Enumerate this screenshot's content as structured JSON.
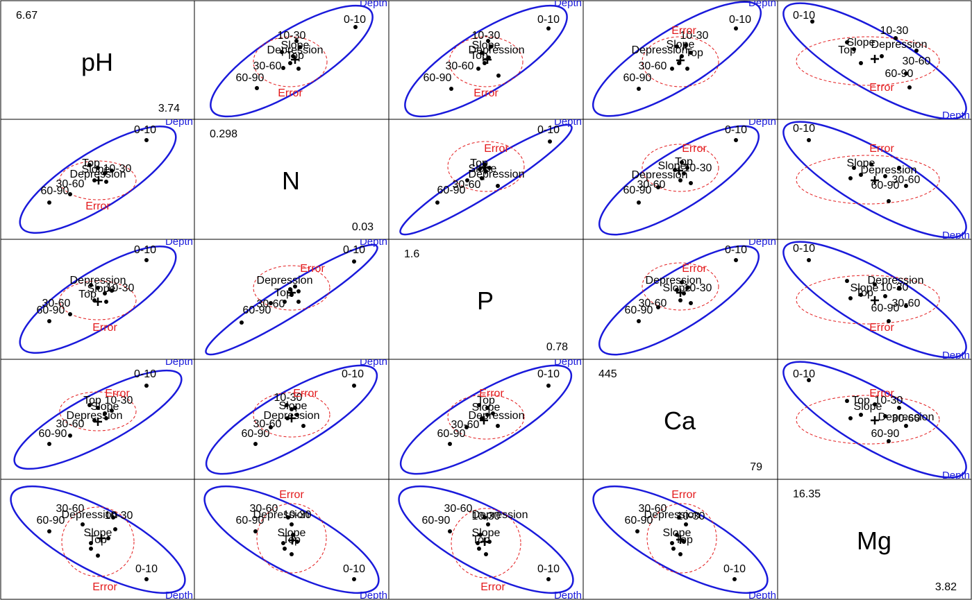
{
  "chart_data": {
    "type": "scatter",
    "variables": [
      {
        "name": "pH",
        "max": "6.67",
        "min": "3.74"
      },
      {
        "name": "N",
        "max": "0.298",
        "min": "0.03"
      },
      {
        "name": "P",
        "max": "1.6",
        "min": "0.78"
      },
      {
        "name": "Ca",
        "max": "445",
        "min": "79"
      },
      {
        "name": "Mg",
        "max": "16.35",
        "min": "3.82"
      }
    ],
    "effect_labels": {
      "hypothesis": "Depth",
      "error": "Error"
    },
    "colors": {
      "hypothesis": "#1a1adb",
      "error": "#e31a1c",
      "points": "#000000",
      "frame": "#000000"
    },
    "grid": false,
    "panels": [
      {
        "row": 0,
        "col": 1,
        "labels": [
          {
            "text": "10-30"
          },
          {
            "text": "Slope"
          },
          {
            "text": "Depression"
          },
          {
            "text": "Top"
          },
          {
            "text": "30-60"
          },
          {
            "text": "60-90"
          },
          {
            "text": "0-10"
          }
        ]
      },
      {
        "row": 0,
        "col": 2,
        "labels": [
          {
            "text": "10-30"
          },
          {
            "text": "Slope"
          },
          {
            "text": "Depression"
          },
          {
            "text": "Top"
          },
          {
            "text": "30-60"
          },
          {
            "text": "60-90"
          },
          {
            "text": "0-10"
          }
        ]
      },
      {
        "row": 0,
        "col": 3,
        "labels": [
          {
            "text": "10-30"
          },
          {
            "text": "Slope"
          },
          {
            "text": "Depression"
          },
          {
            "text": "Top"
          },
          {
            "text": "30-60"
          },
          {
            "text": "60-90"
          },
          {
            "text": "0-10"
          }
        ]
      },
      {
        "row": 0,
        "col": 4,
        "labels": [
          {
            "text": "0-10"
          },
          {
            "text": "10-30"
          },
          {
            "text": "Slope"
          },
          {
            "text": "Top"
          },
          {
            "text": "Depression"
          },
          {
            "text": "30-60"
          },
          {
            "text": "60-90"
          }
        ]
      },
      {
        "row": 1,
        "col": 0,
        "labels": [
          {
            "text": "0-10"
          },
          {
            "text": "Top"
          },
          {
            "text": "Slope"
          },
          {
            "text": "10-30"
          },
          {
            "text": "Depression"
          },
          {
            "text": "30-60"
          },
          {
            "text": "60-90"
          }
        ]
      },
      {
        "row": 1,
        "col": 2,
        "labels": [
          {
            "text": "0-10"
          },
          {
            "text": "Top"
          },
          {
            "text": "Slope"
          },
          {
            "text": "Depression"
          },
          {
            "text": "30-60"
          },
          {
            "text": "60-90"
          }
        ]
      },
      {
        "row": 1,
        "col": 3,
        "labels": [
          {
            "text": "0-10"
          },
          {
            "text": "Top"
          },
          {
            "text": "Slope"
          },
          {
            "text": "10-30"
          },
          {
            "text": "Depression"
          },
          {
            "text": "30-60"
          },
          {
            "text": "60-90"
          }
        ]
      },
      {
        "row": 1,
        "col": 4,
        "labels": [
          {
            "text": "0-10"
          },
          {
            "text": "Slope"
          },
          {
            "text": "Depression"
          },
          {
            "text": "30-60"
          },
          {
            "text": "60-90"
          }
        ]
      },
      {
        "row": 2,
        "col": 0,
        "labels": [
          {
            "text": "0-10"
          },
          {
            "text": "Depression"
          },
          {
            "text": "Slope"
          },
          {
            "text": "10-30"
          },
          {
            "text": "Top"
          },
          {
            "text": "30-60"
          },
          {
            "text": "60-90"
          }
        ]
      },
      {
        "row": 2,
        "col": 1,
        "labels": [
          {
            "text": "0-10"
          },
          {
            "text": "Depression"
          },
          {
            "text": "Top"
          },
          {
            "text": "30-60"
          },
          {
            "text": "60-90"
          }
        ]
      },
      {
        "row": 2,
        "col": 3,
        "labels": [
          {
            "text": "0-10"
          },
          {
            "text": "Depression"
          },
          {
            "text": "Slope"
          },
          {
            "text": "10-30"
          },
          {
            "text": "30-60"
          },
          {
            "text": "60-90"
          }
        ]
      },
      {
        "row": 2,
        "col": 4,
        "labels": [
          {
            "text": "0-10"
          },
          {
            "text": "Depression"
          },
          {
            "text": "Slope"
          },
          {
            "text": "Top"
          },
          {
            "text": "10-30"
          },
          {
            "text": "30-60"
          },
          {
            "text": "60-90"
          }
        ]
      },
      {
        "row": 3,
        "col": 0,
        "labels": [
          {
            "text": "0-10"
          },
          {
            "text": "Top"
          },
          {
            "text": "10-30"
          },
          {
            "text": "Slope"
          },
          {
            "text": "Depression"
          },
          {
            "text": "30-60"
          },
          {
            "text": "60-90"
          }
        ]
      },
      {
        "row": 3,
        "col": 1,
        "labels": [
          {
            "text": "0-10"
          },
          {
            "text": "10-30"
          },
          {
            "text": "Slope"
          },
          {
            "text": "Depression"
          },
          {
            "text": "30-60"
          },
          {
            "text": "60-90"
          }
        ]
      },
      {
        "row": 3,
        "col": 2,
        "labels": [
          {
            "text": "0-10"
          },
          {
            "text": "Top"
          },
          {
            "text": "Slope"
          },
          {
            "text": "Depression"
          },
          {
            "text": "30-60"
          },
          {
            "text": "60-90"
          }
        ]
      },
      {
        "row": 3,
        "col": 4,
        "labels": [
          {
            "text": "0-10"
          },
          {
            "text": "Top"
          },
          {
            "text": "10-30"
          },
          {
            "text": "Slope"
          },
          {
            "text": "Depression"
          },
          {
            "text": "30-60"
          },
          {
            "text": "60-90"
          }
        ]
      },
      {
        "row": 4,
        "col": 0,
        "labels": [
          {
            "text": "30-60"
          },
          {
            "text": "60-90"
          },
          {
            "text": "Depression"
          },
          {
            "text": "10-30"
          },
          {
            "text": "Slope"
          },
          {
            "text": "Top"
          },
          {
            "text": "0-10"
          }
        ]
      },
      {
        "row": 4,
        "col": 1,
        "labels": [
          {
            "text": "30-60"
          },
          {
            "text": "60-90"
          },
          {
            "text": "Depression"
          },
          {
            "text": "10-30"
          },
          {
            "text": "Slope"
          },
          {
            "text": "Top"
          },
          {
            "text": "0-10"
          }
        ]
      },
      {
        "row": 4,
        "col": 2,
        "labels": [
          {
            "text": "30-60"
          },
          {
            "text": "60-90"
          },
          {
            "text": "Depression"
          },
          {
            "text": "10-30"
          },
          {
            "text": "Slope"
          },
          {
            "text": "Top"
          },
          {
            "text": "0-10"
          }
        ]
      },
      {
        "row": 4,
        "col": 3,
        "labels": [
          {
            "text": "30-60"
          },
          {
            "text": "60-90"
          },
          {
            "text": "Depression"
          },
          {
            "text": "10-30"
          },
          {
            "text": "Slope"
          },
          {
            "text": "Top"
          },
          {
            "text": "0-10"
          }
        ]
      }
    ]
  }
}
